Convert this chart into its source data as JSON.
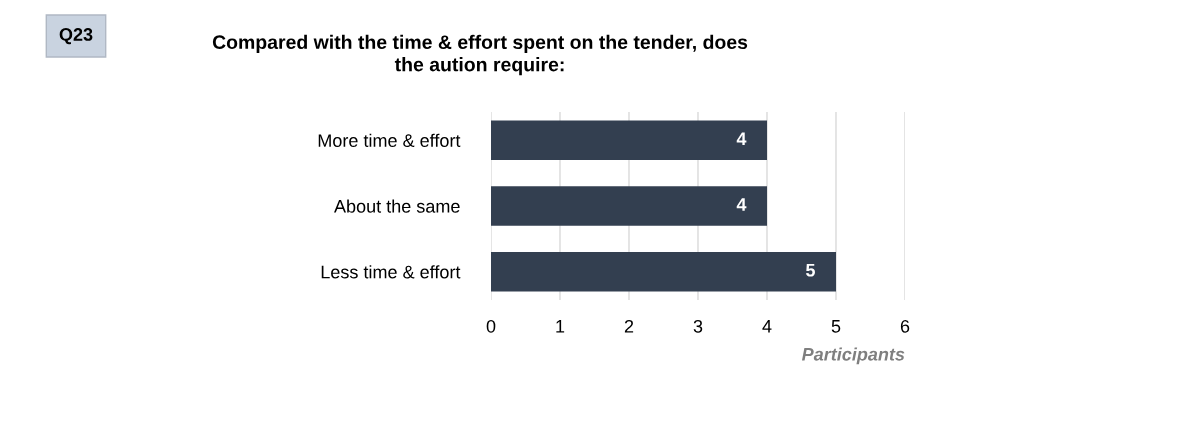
{
  "chart_data": {
    "type": "bar",
    "orientation": "horizontal",
    "title": "Compared with the time & effort spent on the tender, does\nthe aution require:",
    "xlabel": "Participants",
    "annotations": [
      "Q23"
    ],
    "categories": [
      "More time & effort",
      "About the same",
      "Less time & effort"
    ],
    "values": [
      4,
      4,
      5
    ],
    "color": "#333f50",
    "xlim": [
      0,
      6
    ],
    "xticks": [
      0,
      1,
      2,
      3,
      4,
      5,
      6
    ],
    "grid": "x",
    "data_labels": true
  }
}
